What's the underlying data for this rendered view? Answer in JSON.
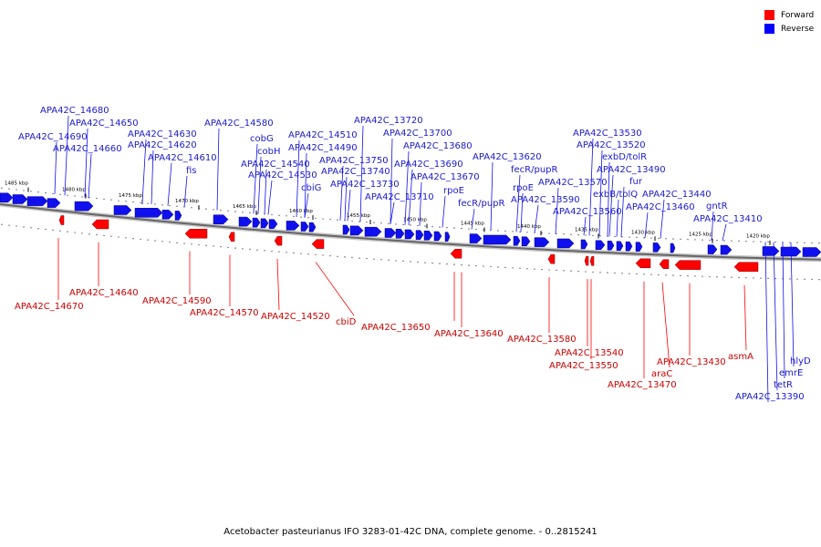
{
  "legend": [
    {
      "label": "Forward",
      "color": "#ff0000"
    },
    {
      "label": "Reverse",
      "color": "#0000ff"
    }
  ],
  "caption": "Acetobacter pasteurianus IFO 3283-01-42C DNA, complete genome. - 0..2815241",
  "colors": {
    "forward": "#ff0000",
    "reverse": "#1010ee",
    "forward_text": "#cc0000",
    "reverse_text": "#1a1acc",
    "backbone": "#9a9a9a"
  },
  "scale_ticks": [
    "1485 kbp",
    "1480 kbp",
    "1475 kbp",
    "1470 kbp",
    "1465 kbp",
    "1460 kbp",
    "1455 kbp",
    "1450 kbp",
    "1445 kbp",
    "1440 kbp",
    "1435 kbp",
    "1430 kbp",
    "1425 kbp",
    "1420 kbp"
  ],
  "reverse_genes": [
    {
      "label": "APA42C_14680"
    },
    {
      "label": "APA42C_14650"
    },
    {
      "label": "APA42C_14690"
    },
    {
      "label": "APA42C_14630"
    },
    {
      "label": "APA42C_14660"
    },
    {
      "label": "APA42C_14620"
    },
    {
      "label": "APA42C_14610"
    },
    {
      "label": "fis"
    },
    {
      "label": "APA42C_14580"
    },
    {
      "label": "cobG"
    },
    {
      "label": "cobH"
    },
    {
      "label": "APA42C_14540"
    },
    {
      "label": "APA42C_14530"
    },
    {
      "label": "APA42C_14510"
    },
    {
      "label": "APA42C_14490"
    },
    {
      "label": "cbiG"
    },
    {
      "label": "APA42C_13720"
    },
    {
      "label": "APA42C_13700"
    },
    {
      "label": "APA42C_13680"
    },
    {
      "label": "APA42C_13750"
    },
    {
      "label": "APA42C_13740"
    },
    {
      "label": "APA42C_13690"
    },
    {
      "label": "APA42C_13730"
    },
    {
      "label": "APA42C_13670"
    },
    {
      "label": "APA42C_13710"
    },
    {
      "label": "rpoE"
    },
    {
      "label": "APA42C_13620"
    },
    {
      "label": "fecR/pupR"
    },
    {
      "label": "fecR/pupR"
    },
    {
      "label": "rpoE"
    },
    {
      "label": "APA42C_13590"
    },
    {
      "label": "APA42C_13570"
    },
    {
      "label": "APA42C_13560"
    },
    {
      "label": "APA42C_13530"
    },
    {
      "label": "APA42C_13520"
    },
    {
      "label": "exbD/tolR"
    },
    {
      "label": "APA42C_13490"
    },
    {
      "label": "fur"
    },
    {
      "label": "exbB/tolQ"
    },
    {
      "label": "APA42C_13440"
    },
    {
      "label": "APA42C_13460"
    },
    {
      "label": "gntR"
    },
    {
      "label": "APA42C_13410"
    },
    {
      "label": "hlyD"
    },
    {
      "label": "emrE"
    },
    {
      "label": "tetR"
    },
    {
      "label": "APA42C_13390"
    }
  ],
  "forward_genes": [
    {
      "label": "APA42C_14640"
    },
    {
      "label": "APA42C_14670"
    },
    {
      "label": "APA42C_14590"
    },
    {
      "label": "APA42C_14570"
    },
    {
      "label": "APA42C_14520"
    },
    {
      "label": "cbiD"
    },
    {
      "label": "APA42C_13650"
    },
    {
      "label": "APA42C_13640"
    },
    {
      "label": "APA42C_13580"
    },
    {
      "label": "APA42C_13540"
    },
    {
      "label": "APA42C_13550"
    },
    {
      "label": "APA42C_13430"
    },
    {
      "label": "araC"
    },
    {
      "label": "APA42C_13470"
    },
    {
      "label": "asmA"
    }
  ]
}
